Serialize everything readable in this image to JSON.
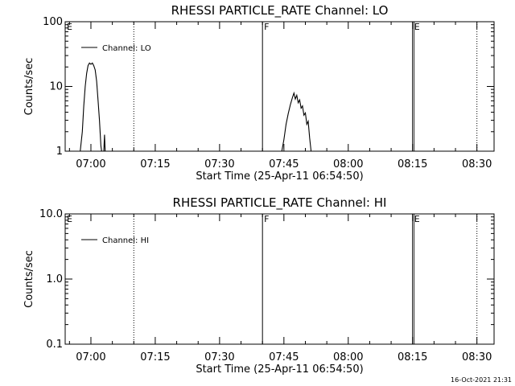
{
  "chart_data": [
    {
      "type": "line",
      "title": "RHESSI PARTICLE_RATE Channel: LO",
      "xlabel": "Start Time (25-Apr-11 06:54:50)",
      "ylabel": "Counts/sec",
      "yscale": "log",
      "ylim": [
        1,
        100
      ],
      "yticks": [
        {
          "v": 1,
          "label": "1"
        },
        {
          "v": 10,
          "label": "10"
        },
        {
          "v": 100,
          "label": "100"
        }
      ],
      "xlim": [
        "06:54",
        "08:34"
      ],
      "xticks": [
        "07:00",
        "07:15",
        "07:30",
        "07:45",
        "08:00",
        "08:15",
        "08:30"
      ],
      "legend": {
        "entry": "Channel: LO",
        "placement": "top-left"
      },
      "annotations": [
        {
          "label": "E",
          "time": "06:54",
          "line": "none"
        },
        {
          "label": "F",
          "time": "07:40",
          "line": "solid"
        },
        {
          "label": "E",
          "time": "08:15",
          "line": "solid"
        }
      ],
      "dotted_markers": [
        "07:10",
        "08:30"
      ],
      "series": [
        {
          "name": "Channel: LO",
          "segments": [
            [
              [
                "06:57:30",
                1
              ],
              [
                "06:58:00",
                2
              ],
              [
                "06:58:20",
                5
              ],
              [
                "06:58:40",
                10
              ],
              [
                "06:59:00",
                16
              ],
              [
                "06:59:20",
                21
              ],
              [
                "06:59:40",
                23
              ],
              [
                "07:00:00",
                22
              ],
              [
                "07:00:20",
                23
              ],
              [
                "07:00:40",
                21
              ],
              [
                "07:01:00",
                18
              ],
              [
                "07:01:20",
                12
              ],
              [
                "07:01:40",
                6
              ],
              [
                "07:02:00",
                3
              ],
              [
                "07:02:20",
                1.2
              ],
              [
                "07:02:30",
                1
              ]
            ],
            [
              [
                "07:03:00",
                1
              ],
              [
                "07:03:10",
                1.8
              ],
              [
                "07:03:20",
                1
              ]
            ],
            [
              [
                "07:44:30",
                1
              ],
              [
                "07:45:00",
                1.5
              ],
              [
                "07:45:30",
                2.6
              ],
              [
                "07:46:00",
                3.8
              ],
              [
                "07:46:30",
                5.2
              ],
              [
                "07:47:00",
                6.8
              ],
              [
                "07:47:20",
                7.9
              ],
              [
                "07:47:40",
                6.4
              ],
              [
                "07:48:00",
                7.3
              ],
              [
                "07:48:20",
                5.6
              ],
              [
                "07:48:40",
                6.2
              ],
              [
                "07:49:00",
                4.6
              ],
              [
                "07:49:20",
                5.0
              ],
              [
                "07:49:40",
                3.6
              ],
              [
                "07:50:00",
                3.9
              ],
              [
                "07:50:20",
                2.6
              ],
              [
                "07:50:40",
                2.9
              ],
              [
                "07:51:00",
                1.6
              ],
              [
                "07:51:20",
                1
              ]
            ]
          ]
        }
      ]
    },
    {
      "type": "line",
      "title": "RHESSI PARTICLE_RATE Channel: HI",
      "xlabel": "Start Time (25-Apr-11 06:54:50)",
      "ylabel": "Counts/sec",
      "yscale": "log",
      "ylim": [
        0.1,
        10
      ],
      "yticks": [
        {
          "v": 0.1,
          "label": "0.1"
        },
        {
          "v": 1,
          "label": "1.0"
        },
        {
          "v": 10,
          "label": "10.0"
        }
      ],
      "xlim": [
        "06:54",
        "08:34"
      ],
      "xticks": [
        "07:00",
        "07:15",
        "07:30",
        "07:45",
        "08:00",
        "08:15",
        "08:30"
      ],
      "legend": {
        "entry": "Channel: HI",
        "placement": "top-left"
      },
      "annotations": [
        {
          "label": "E",
          "time": "06:54",
          "line": "none"
        },
        {
          "label": "F",
          "time": "07:40",
          "line": "solid"
        },
        {
          "label": "E",
          "time": "08:15",
          "line": "solid"
        }
      ],
      "dotted_markers": [
        "07:10",
        "08:30"
      ],
      "series": [
        {
          "name": "Channel: HI",
          "segments": []
        }
      ]
    }
  ],
  "footer": {
    "timestamp": "16-Oct-2021 21:31"
  }
}
